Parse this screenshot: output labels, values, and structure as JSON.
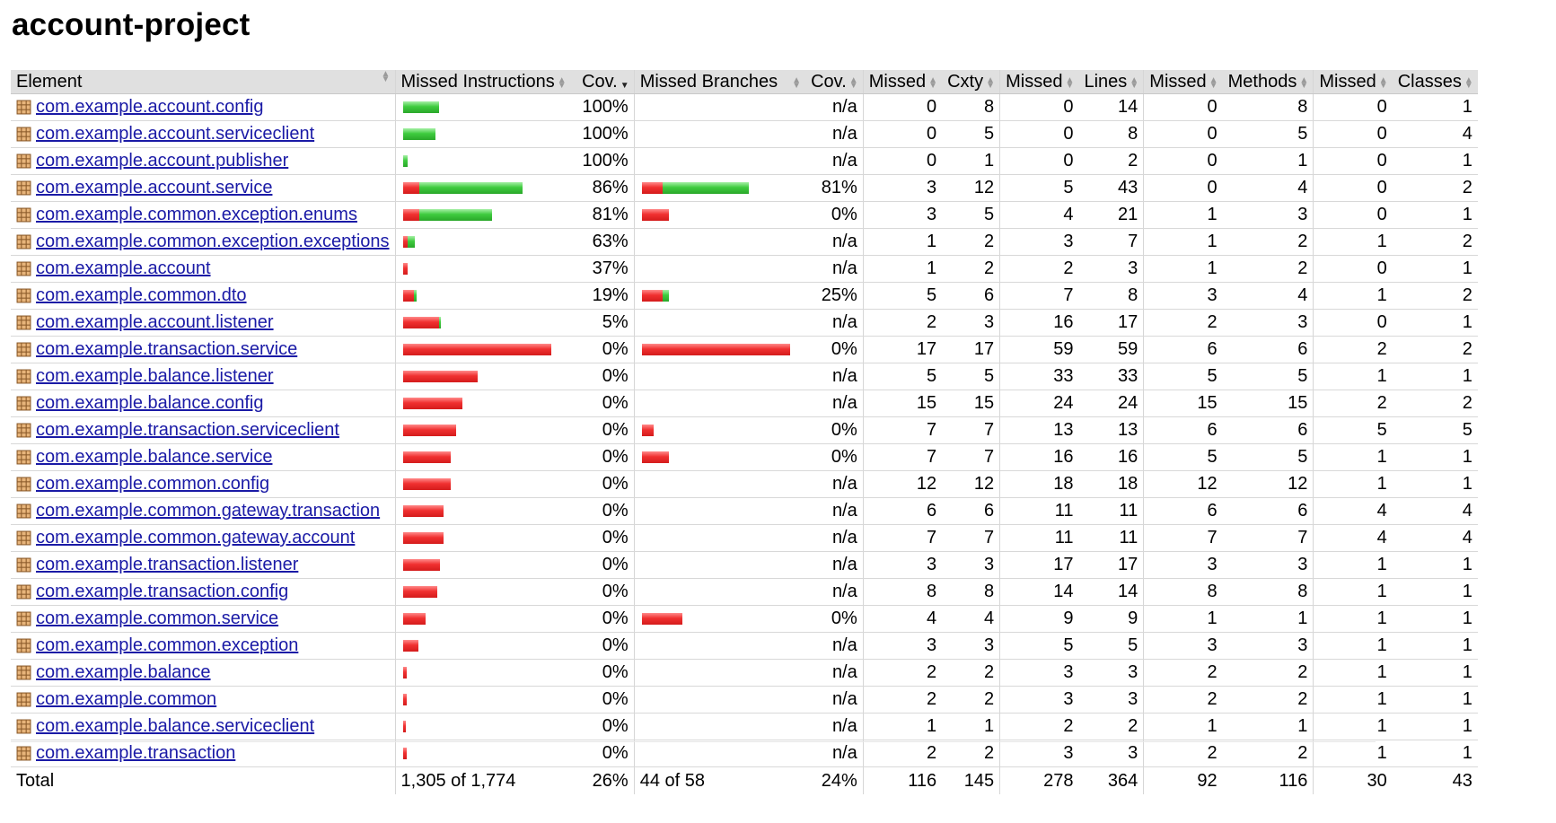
{
  "page": {
    "title": "account-project"
  },
  "headers": {
    "element": "Element",
    "missed_instructions": "Missed Instructions",
    "cov": "Cov.",
    "missed_branches": "Missed Branches",
    "cov2": "Cov.",
    "missed_cxty": "Missed",
    "cxty": "Cxty",
    "missed_lines": "Missed",
    "lines": "Lines",
    "missed_methods": "Missed",
    "methods": "Methods",
    "missed_classes": "Missed",
    "classes": "Classes"
  },
  "bar_scale_note": "bars are fractions of the full bar width",
  "colors": {
    "missed": "#e02828",
    "covered": "#35c035",
    "header_bg": "#e0e0e0",
    "link": "#1a1aa6"
  },
  "icon": "package-icon",
  "rows": [
    {
      "name": "com.example.account.config",
      "ibar": [
        0.0,
        0.24
      ],
      "icov": "100%",
      "bbar": null,
      "bcov": "n/a",
      "mcx": "0",
      "cx": "8",
      "ml": "0",
      "l": "14",
      "mm": "0",
      "m": "8",
      "mc": "0",
      "c": "1"
    },
    {
      "name": "com.example.account.serviceclient",
      "ibar": [
        0.0,
        0.22
      ],
      "icov": "100%",
      "bbar": null,
      "bcov": "n/a",
      "mcx": "0",
      "cx": "5",
      "ml": "0",
      "l": "8",
      "mm": "0",
      "m": "5",
      "mc": "0",
      "c": "4"
    },
    {
      "name": "com.example.account.publisher",
      "ibar": [
        0.0,
        0.03
      ],
      "icov": "100%",
      "bbar": null,
      "bcov": "n/a",
      "mcx": "0",
      "cx": "1",
      "ml": "0",
      "l": "2",
      "mm": "0",
      "m": "1",
      "mc": "0",
      "c": "1"
    },
    {
      "name": "com.example.account.service",
      "ibar": [
        0.11,
        0.7
      ],
      "icov": "86%",
      "bbar": [
        0.14,
        0.58
      ],
      "bcov": "81%",
      "mcx": "3",
      "cx": "12",
      "ml": "5",
      "l": "43",
      "mm": "0",
      "m": "4",
      "mc": "0",
      "c": "2"
    },
    {
      "name": "com.example.common.exception.enums",
      "ibar": [
        0.11,
        0.49
      ],
      "icov": "81%",
      "bbar": [
        0.18,
        0.0
      ],
      "bcov": "0%",
      "mcx": "3",
      "cx": "5",
      "ml": "4",
      "l": "21",
      "mm": "1",
      "m": "3",
      "mc": "0",
      "c": "1"
    },
    {
      "name": "com.example.common.exception.exceptions",
      "ibar": [
        0.03,
        0.05
      ],
      "icov": "63%",
      "bbar": null,
      "bcov": "n/a",
      "mcx": "1",
      "cx": "2",
      "ml": "3",
      "l": "7",
      "mm": "1",
      "m": "2",
      "mc": "1",
      "c": "2"
    },
    {
      "name": "com.example.account",
      "ibar": [
        0.03,
        0.0
      ],
      "icov": "37%",
      "bbar": null,
      "bcov": "n/a",
      "mcx": "1",
      "cx": "2",
      "ml": "2",
      "l": "3",
      "mm": "1",
      "m": "2",
      "mc": "0",
      "c": "1"
    },
    {
      "name": "com.example.common.dto",
      "ibar": [
        0.07,
        0.02
      ],
      "icov": "19%",
      "bbar": [
        0.14,
        0.04
      ],
      "bcov": "25%",
      "mcx": "5",
      "cx": "6",
      "ml": "7",
      "l": "8",
      "mm": "3",
      "m": "4",
      "mc": "1",
      "c": "2"
    },
    {
      "name": "com.example.account.listener",
      "ibar": [
        0.24,
        0.01
      ],
      "icov": "5%",
      "bbar": null,
      "bcov": "n/a",
      "mcx": "2",
      "cx": "3",
      "ml": "16",
      "l": "17",
      "mm": "2",
      "m": "3",
      "mc": "0",
      "c": "1"
    },
    {
      "name": "com.example.transaction.service",
      "ibar": [
        1.0,
        0.0
      ],
      "icov": "0%",
      "bbar": [
        1.0,
        0.0
      ],
      "bcov": "0%",
      "mcx": "17",
      "cx": "17",
      "ml": "59",
      "l": "59",
      "mm": "6",
      "m": "6",
      "mc": "2",
      "c": "2"
    },
    {
      "name": "com.example.balance.listener",
      "ibar": [
        0.5,
        0.0
      ],
      "icov": "0%",
      "bbar": null,
      "bcov": "n/a",
      "mcx": "5",
      "cx": "5",
      "ml": "33",
      "l": "33",
      "mm": "5",
      "m": "5",
      "mc": "1",
      "c": "1"
    },
    {
      "name": "com.example.balance.config",
      "ibar": [
        0.4,
        0.0
      ],
      "icov": "0%",
      "bbar": null,
      "bcov": "n/a",
      "mcx": "15",
      "cx": "15",
      "ml": "24",
      "l": "24",
      "mm": "15",
      "m": "15",
      "mc": "2",
      "c": "2"
    },
    {
      "name": "com.example.transaction.serviceclient",
      "ibar": [
        0.36,
        0.0
      ],
      "icov": "0%",
      "bbar": [
        0.08,
        0.0
      ],
      "bcov": "0%",
      "mcx": "7",
      "cx": "7",
      "ml": "13",
      "l": "13",
      "mm": "6",
      "m": "6",
      "mc": "5",
      "c": "5"
    },
    {
      "name": "com.example.balance.service",
      "ibar": [
        0.32,
        0.0
      ],
      "icov": "0%",
      "bbar": [
        0.18,
        0.0
      ],
      "bcov": "0%",
      "mcx": "7",
      "cx": "7",
      "ml": "16",
      "l": "16",
      "mm": "5",
      "m": "5",
      "mc": "1",
      "c": "1"
    },
    {
      "name": "com.example.common.config",
      "ibar": [
        0.32,
        0.0
      ],
      "icov": "0%",
      "bbar": null,
      "bcov": "n/a",
      "mcx": "12",
      "cx": "12",
      "ml": "18",
      "l": "18",
      "mm": "12",
      "m": "12",
      "mc": "1",
      "c": "1"
    },
    {
      "name": "com.example.common.gateway.transaction",
      "ibar": [
        0.27,
        0.0
      ],
      "icov": "0%",
      "bbar": null,
      "bcov": "n/a",
      "mcx": "6",
      "cx": "6",
      "ml": "11",
      "l": "11",
      "mm": "6",
      "m": "6",
      "mc": "4",
      "c": "4"
    },
    {
      "name": "com.example.common.gateway.account",
      "ibar": [
        0.27,
        0.0
      ],
      "icov": "0%",
      "bbar": null,
      "bcov": "n/a",
      "mcx": "7",
      "cx": "7",
      "ml": "11",
      "l": "11",
      "mm": "7",
      "m": "7",
      "mc": "4",
      "c": "4"
    },
    {
      "name": "com.example.transaction.listener",
      "ibar": [
        0.25,
        0.0
      ],
      "icov": "0%",
      "bbar": null,
      "bcov": "n/a",
      "mcx": "3",
      "cx": "3",
      "ml": "17",
      "l": "17",
      "mm": "3",
      "m": "3",
      "mc": "1",
      "c": "1"
    },
    {
      "name": "com.example.transaction.config",
      "ibar": [
        0.23,
        0.0
      ],
      "icov": "0%",
      "bbar": null,
      "bcov": "n/a",
      "mcx": "8",
      "cx": "8",
      "ml": "14",
      "l": "14",
      "mm": "8",
      "m": "8",
      "mc": "1",
      "c": "1"
    },
    {
      "name": "com.example.common.service",
      "ibar": [
        0.15,
        0.0
      ],
      "icov": "0%",
      "bbar": [
        0.27,
        0.0
      ],
      "bcov": "0%",
      "mcx": "4",
      "cx": "4",
      "ml": "9",
      "l": "9",
      "mm": "1",
      "m": "1",
      "mc": "1",
      "c": "1"
    },
    {
      "name": "com.example.common.exception",
      "ibar": [
        0.1,
        0.0
      ],
      "icov": "0%",
      "bbar": null,
      "bcov": "n/a",
      "mcx": "3",
      "cx": "3",
      "ml": "5",
      "l": "5",
      "mm": "3",
      "m": "3",
      "mc": "1",
      "c": "1"
    },
    {
      "name": "com.example.balance",
      "ibar": [
        0.025,
        0.0
      ],
      "icov": "0%",
      "bbar": null,
      "bcov": "n/a",
      "mcx": "2",
      "cx": "2",
      "ml": "3",
      "l": "3",
      "mm": "2",
      "m": "2",
      "mc": "1",
      "c": "1"
    },
    {
      "name": "com.example.common",
      "ibar": [
        0.025,
        0.0
      ],
      "icov": "0%",
      "bbar": null,
      "bcov": "n/a",
      "mcx": "2",
      "cx": "2",
      "ml": "3",
      "l": "3",
      "mm": "2",
      "m": "2",
      "mc": "1",
      "c": "1"
    },
    {
      "name": "com.example.balance.serviceclient",
      "ibar": [
        0.02,
        0.0
      ],
      "icov": "0%",
      "bbar": null,
      "bcov": "n/a",
      "mcx": "1",
      "cx": "1",
      "ml": "2",
      "l": "2",
      "mm": "1",
      "m": "1",
      "mc": "1",
      "c": "1"
    },
    {
      "name": "com.example.transaction",
      "ibar": [
        0.025,
        0.0
      ],
      "icov": "0%",
      "bbar": null,
      "bcov": "n/a",
      "mcx": "2",
      "cx": "2",
      "ml": "3",
      "l": "3",
      "mm": "2",
      "m": "2",
      "mc": "1",
      "c": "1"
    }
  ],
  "total": {
    "label": "Total",
    "instructions": "1,305 of 1,774",
    "icov": "26%",
    "branches": "44 of 58",
    "bcov": "24%",
    "mcx": "116",
    "cx": "145",
    "ml": "278",
    "l": "364",
    "mm": "92",
    "m": "116",
    "mc": "30",
    "c": "43"
  }
}
